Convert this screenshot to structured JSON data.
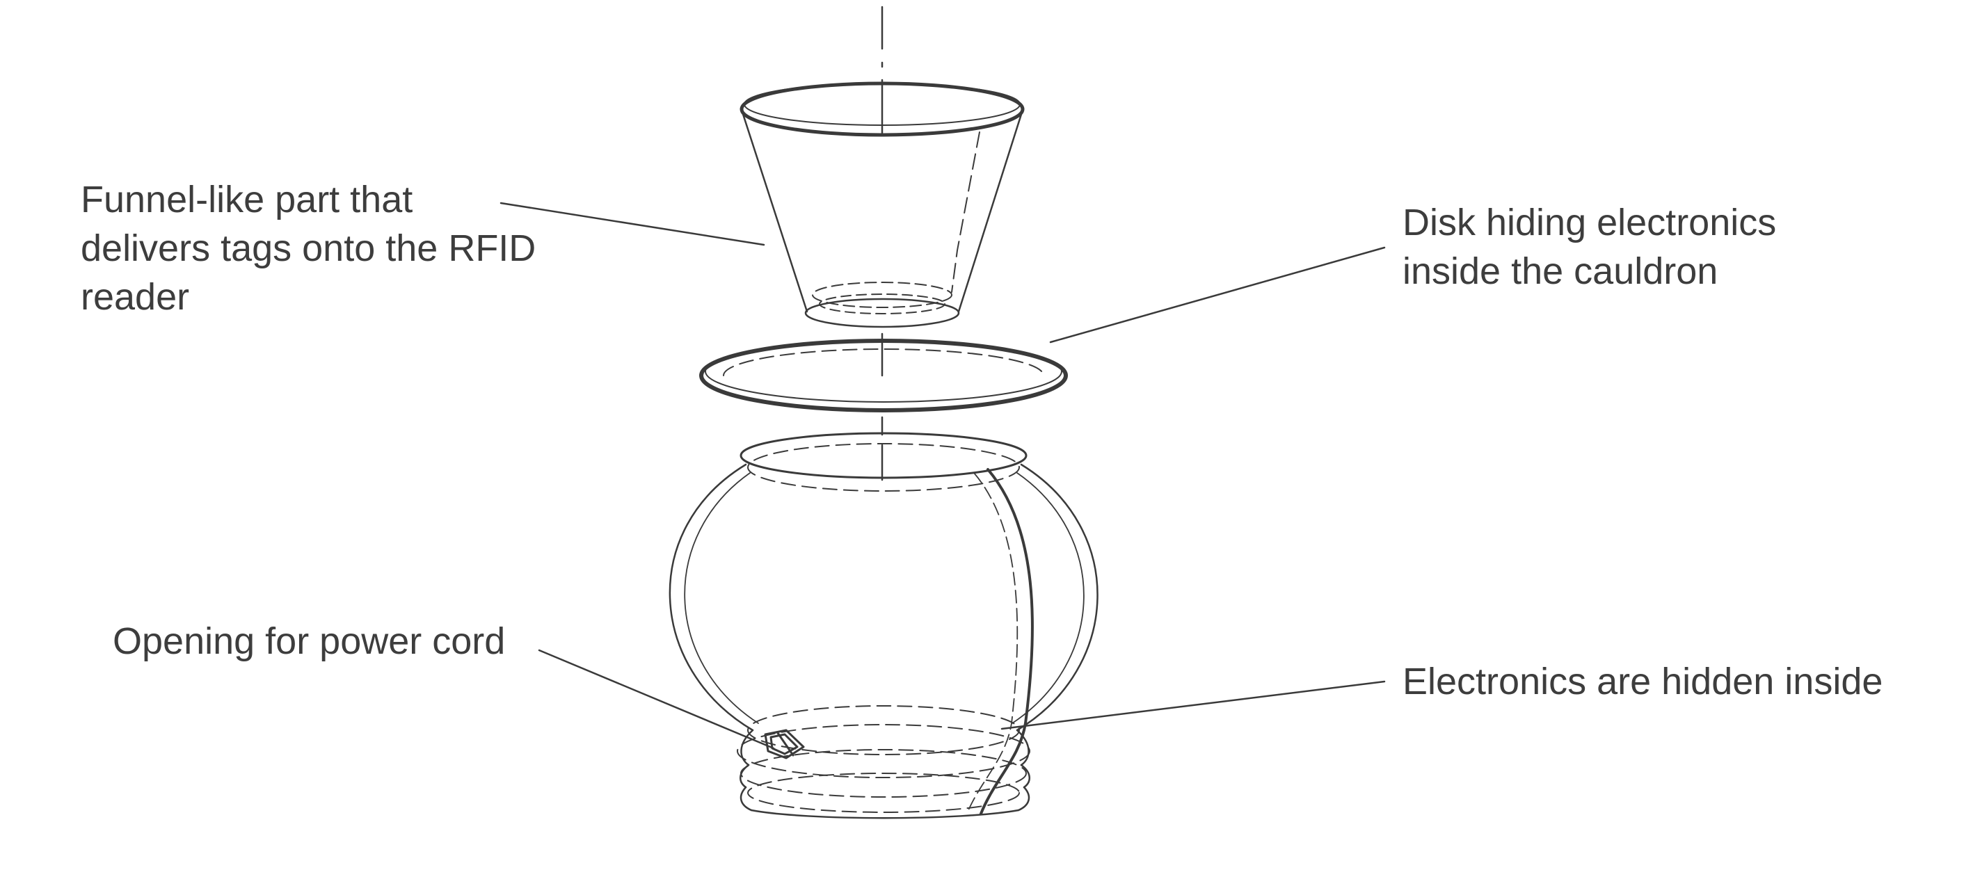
{
  "annotations": {
    "funnel": {
      "lines": [
        "Funnel-like part that",
        "delivers tags onto the RFID",
        "reader"
      ]
    },
    "disk": {
      "lines": [
        "Disk hiding electronics",
        "inside the cauldron"
      ]
    },
    "opening": {
      "lines": [
        "Opening for power cord"
      ]
    },
    "electronics": {
      "lines": [
        "Electronics are hidden inside"
      ]
    }
  },
  "colors": {
    "ink": "#3a3a3a",
    "text": "#3d3d3d",
    "background": "#ffffff"
  }
}
